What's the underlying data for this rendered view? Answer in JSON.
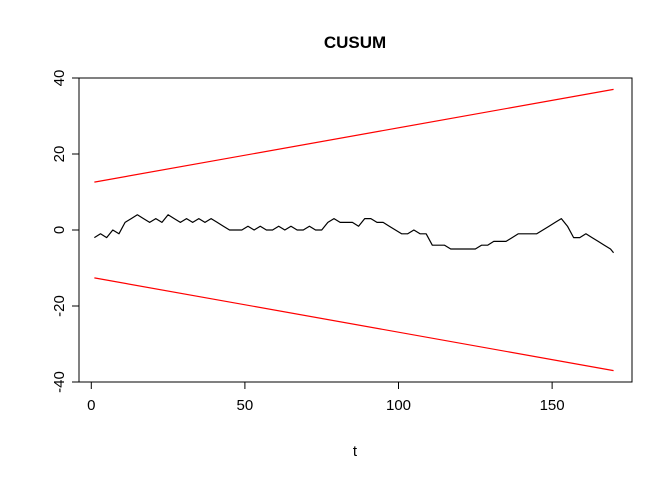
{
  "chart_data": {
    "type": "line",
    "title": "CUSUM",
    "xlabel": "t",
    "ylabel": "",
    "xlim": [
      -4,
      176
    ],
    "ylim": [
      -40,
      40
    ],
    "xticks": [
      0,
      50,
      100,
      150
    ],
    "yticks": [
      -40,
      -20,
      0,
      20,
      40
    ],
    "grid": false,
    "legend": "none",
    "colors": {
      "cusum": "#000000",
      "bounds": "#ff0000",
      "frame": "#000000"
    },
    "series": [
      {
        "role": "cusum",
        "x": [
          1,
          3,
          5,
          7,
          9,
          11,
          13,
          15,
          17,
          19,
          21,
          23,
          25,
          27,
          29,
          31,
          33,
          35,
          37,
          39,
          41,
          43,
          45,
          47,
          49,
          51,
          53,
          55,
          57,
          59,
          61,
          63,
          65,
          67,
          69,
          71,
          73,
          75,
          77,
          79,
          81,
          83,
          85,
          87,
          89,
          91,
          93,
          95,
          97,
          99,
          101,
          103,
          105,
          107,
          109,
          111,
          113,
          115,
          117,
          119,
          121,
          123,
          125,
          127,
          129,
          131,
          133,
          135,
          137,
          139,
          141,
          143,
          145,
          147,
          149,
          151,
          153,
          155,
          157,
          159,
          161,
          163,
          165,
          167,
          169,
          170
        ],
        "y": [
          -2,
          -1,
          -2,
          0,
          -1,
          2,
          3,
          4,
          3,
          2,
          3,
          2,
          4,
          3,
          2,
          3,
          2,
          3,
          2,
          3,
          2,
          1,
          0,
          0,
          0,
          1,
          0,
          1,
          0,
          0,
          1,
          0,
          1,
          0,
          0,
          1,
          0,
          0,
          2,
          3,
          2,
          2,
          2,
          1,
          3,
          3,
          2,
          2,
          1,
          0,
          -1,
          -1,
          0,
          -1,
          -1,
          -4,
          -4,
          -4,
          -5,
          -5,
          -5,
          -5,
          -5,
          -4,
          -4,
          -3,
          -3,
          -3,
          -2,
          -1,
          -1,
          -1,
          -1,
          0,
          1,
          2,
          3,
          1,
          -2,
          -2,
          -1,
          -2,
          -3,
          -4,
          -5,
          -6
        ]
      },
      {
        "role": "upper-bound",
        "x": [
          1,
          170
        ],
        "y": [
          12.6,
          37.0
        ]
      },
      {
        "role": "lower-bound",
        "x": [
          1,
          170
        ],
        "y": [
          -12.6,
          -37.0
        ]
      }
    ]
  }
}
